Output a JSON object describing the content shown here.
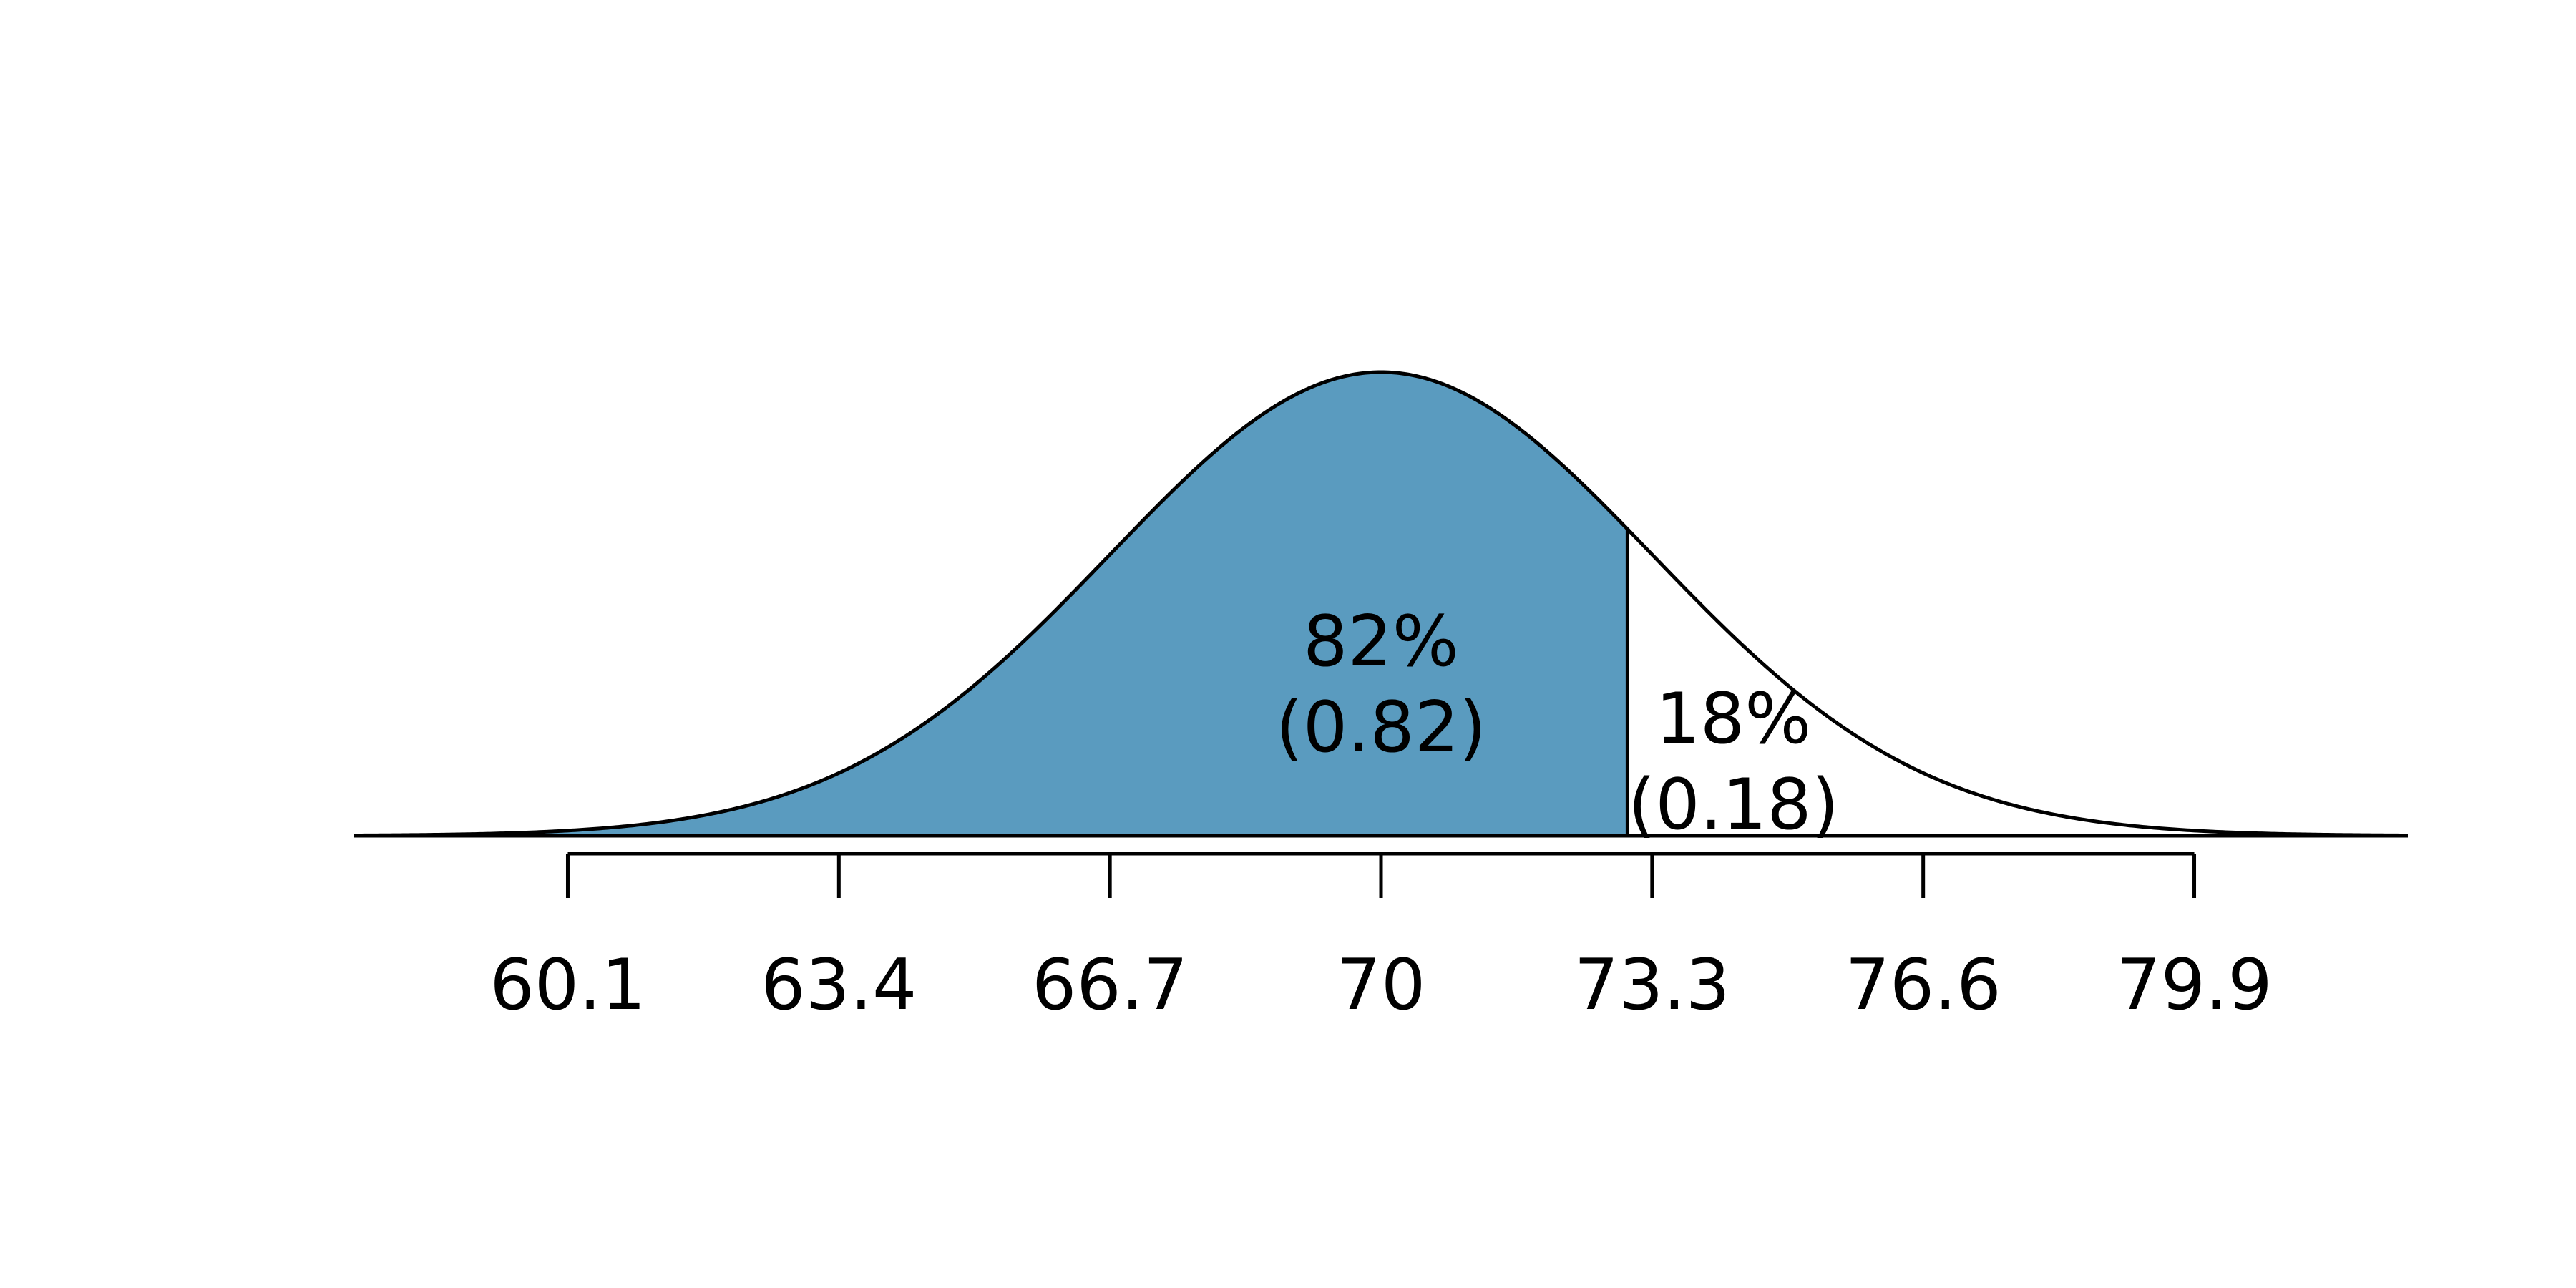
{
  "chart_data": {
    "type": "area",
    "title": "",
    "xlabel": "",
    "ylabel": "",
    "distribution": "normal",
    "mean": 70,
    "sd": 3.3,
    "xlim": [
      57.5,
      82.5
    ],
    "shading": {
      "upper_bound": 73,
      "color": "#5A9BBF"
    },
    "tick_values": [
      60.1,
      63.4,
      66.7,
      70,
      73.3,
      76.6,
      79.9
    ],
    "tick_labels": [
      "60.1",
      "63.4",
      "66.7",
      "70",
      "73.3",
      "76.6",
      "79.9"
    ],
    "regions": [
      {
        "name": "shaded-left",
        "percent_label": "82%",
        "proportion_label": "(0.82)",
        "value": 0.82
      },
      {
        "name": "unshaded-right",
        "percent_label": "18%",
        "proportion_label": "(0.18)",
        "value": 0.18
      }
    ]
  }
}
